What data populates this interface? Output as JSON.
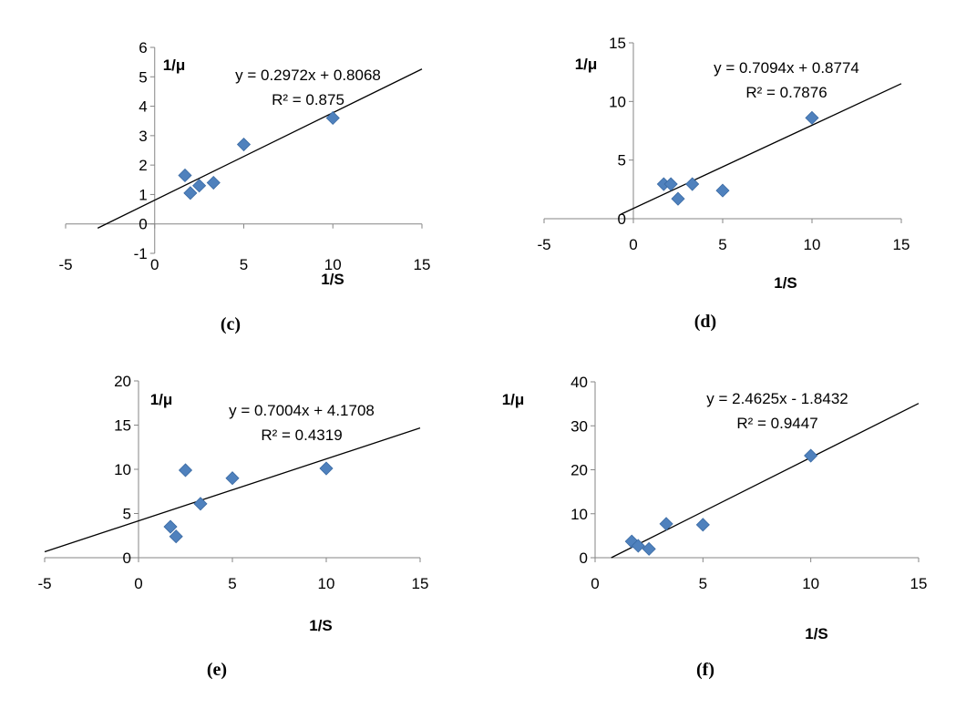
{
  "chart_data": [
    {
      "type": "scatter",
      "caption": "(c)",
      "xlabel": "1/S",
      "ylabel": "1/μ",
      "xlim": [
        -5,
        15
      ],
      "ylim": [
        -1,
        6
      ],
      "xticks": [
        -5,
        0,
        5,
        10,
        15
      ],
      "yticks": [
        -1,
        0,
        1,
        2,
        3,
        4,
        5,
        6
      ],
      "points": [
        {
          "x": 1.7,
          "y": 1.65
        },
        {
          "x": 2.0,
          "y": 1.05
        },
        {
          "x": 2.5,
          "y": 1.3
        },
        {
          "x": 3.3,
          "y": 1.4
        },
        {
          "x": 5.0,
          "y": 2.7
        },
        {
          "x": 10.0,
          "y": 3.6
        }
      ],
      "trendline": {
        "slope": 0.2972,
        "intercept": 0.8068,
        "x_range": [
          -3.2,
          15
        ]
      },
      "equation": "y = 0.2972x + 0.8068",
      "r2": "R² = 0.875",
      "marker_color": "#4f81bd",
      "grid": false
    },
    {
      "type": "scatter",
      "caption": "(d)",
      "xlabel": "1/S",
      "ylabel": "1/μ",
      "xlim": [
        -5,
        15
      ],
      "ylim": [
        0,
        15
      ],
      "xticks": [
        -5,
        0,
        5,
        10,
        15
      ],
      "yticks": [
        0,
        5,
        10,
        15
      ],
      "points": [
        {
          "x": 1.7,
          "y": 2.95
        },
        {
          "x": 2.1,
          "y": 2.95
        },
        {
          "x": 2.5,
          "y": 1.7
        },
        {
          "x": 3.3,
          "y": 2.95
        },
        {
          "x": 5.0,
          "y": 2.4
        },
        {
          "x": 10.0,
          "y": 8.6
        }
      ],
      "trendline": {
        "slope": 0.7094,
        "intercept": 0.8774,
        "x_range": [
          -0.7,
          15
        ]
      },
      "equation": "y = 0.7094x + 0.8774",
      "r2": "R² = 0.7876",
      "marker_color": "#4f81bd",
      "grid": false
    },
    {
      "type": "scatter",
      "caption": "(e)",
      "xlabel": "1/S",
      "ylabel": "1/μ",
      "xlim": [
        -5,
        15
      ],
      "ylim": [
        0,
        20
      ],
      "xticks": [
        -5,
        0,
        5,
        10,
        15
      ],
      "yticks": [
        0,
        5,
        10,
        15,
        20
      ],
      "points": [
        {
          "x": 1.7,
          "y": 3.5
        },
        {
          "x": 2.0,
          "y": 2.4
        },
        {
          "x": 2.5,
          "y": 9.9
        },
        {
          "x": 3.3,
          "y": 6.1
        },
        {
          "x": 5.0,
          "y": 9.0
        },
        {
          "x": 10.0,
          "y": 10.1
        }
      ],
      "trendline": {
        "slope": 0.7004,
        "intercept": 4.1708,
        "x_range": [
          -5,
          15
        ]
      },
      "equation": "y = 0.7004x + 4.1708",
      "r2": "R² = 0.4319",
      "marker_color": "#4f81bd",
      "grid": false
    },
    {
      "type": "scatter",
      "caption": "(f)",
      "xlabel": "1/S",
      "ylabel": "1/μ",
      "xlim": [
        0,
        15
      ],
      "ylim": [
        0,
        40
      ],
      "xticks": [
        0,
        5,
        10,
        15
      ],
      "yticks": [
        0,
        10,
        20,
        30,
        40
      ],
      "points": [
        {
          "x": 1.7,
          "y": 3.7
        },
        {
          "x": 2.0,
          "y": 2.7
        },
        {
          "x": 2.5,
          "y": 2.0
        },
        {
          "x": 3.3,
          "y": 7.7
        },
        {
          "x": 5.0,
          "y": 7.5
        },
        {
          "x": 10.0,
          "y": 23.2
        }
      ],
      "trendline": {
        "slope": 2.4625,
        "intercept": -1.8432,
        "x_range": [
          0.75,
          15
        ]
      },
      "equation": "y = 2.4625x - 1.8432",
      "r2": "R² = 0.9447",
      "marker_color": "#4f81bd",
      "grid": false
    }
  ]
}
